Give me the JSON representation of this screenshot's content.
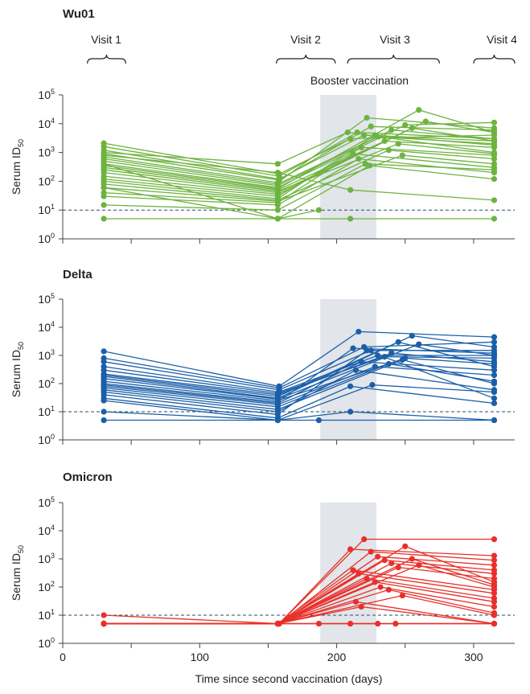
{
  "chart_data": [
    {
      "type": "line",
      "panel": "Wu01",
      "title": "Wu01",
      "color": "#6db33f",
      "ylabel": "Serum ID",
      "ylabel_sub": "50",
      "yscale": "log",
      "ylim": [
        1,
        100000
      ],
      "xlim": [
        0,
        330
      ],
      "limit_of_detection": 10,
      "shaded_region": [
        188,
        229
      ],
      "visits": [
        {
          "label": "Visit 1",
          "range": [
            18,
            46
          ]
        },
        {
          "label": "Visit 2",
          "range": [
            156,
            199
          ]
        },
        {
          "label": "Visit 3",
          "range": [
            208,
            275
          ]
        },
        {
          "label": "Visit 4",
          "range": [
            300,
            330
          ]
        }
      ],
      "booster_label": "Booster vaccination",
      "series": [
        {
          "x": [
            30,
            158,
            210,
            315
          ],
          "y": [
            2100,
            180,
            3000,
            4000
          ]
        },
        {
          "x": [
            30,
            158,
            215,
            315
          ],
          "y": [
            1600,
            150,
            5000,
            3000
          ]
        },
        {
          "x": [
            30,
            158,
            220,
            315
          ],
          "y": [
            1200,
            120,
            4000,
            2500
          ]
        },
        {
          "x": [
            30,
            158,
            225,
            315
          ],
          "y": [
            900,
            110,
            8000,
            6000
          ]
        },
        {
          "x": [
            30,
            157,
            222,
            315
          ],
          "y": [
            700,
            90,
            16000,
            7000
          ]
        },
        {
          "x": [
            30,
            157,
            230,
            315
          ],
          "y": [
            600,
            80,
            3500,
            2000
          ]
        },
        {
          "x": [
            30,
            157,
            240,
            315
          ],
          "y": [
            500,
            70,
            6000,
            3000
          ]
        },
        {
          "x": [
            30,
            157,
            250,
            315
          ],
          "y": [
            400,
            60,
            9000,
            11000
          ]
        },
        {
          "x": [
            30,
            157,
            260,
            315
          ],
          "y": [
            350,
            55,
            30000,
            5000
          ]
        },
        {
          "x": [
            30,
            157,
            235,
            315
          ],
          "y": [
            300,
            50,
            2500,
            1500
          ]
        },
        {
          "x": [
            30,
            157,
            245,
            315
          ],
          "y": [
            250,
            45,
            2000,
            900
          ]
        },
        {
          "x": [
            30,
            157,
            255,
            315
          ],
          "y": [
            200,
            40,
            7000,
            2500
          ]
        },
        {
          "x": [
            30,
            157,
            265,
            315
          ],
          "y": [
            150,
            35,
            12000,
            5000
          ]
        },
        {
          "x": [
            30,
            157,
            218,
            315
          ],
          "y": [
            120,
            30,
            1500,
            800
          ]
        },
        {
          "x": [
            30,
            157,
            228,
            315
          ],
          "y": [
            100,
            25,
            4000,
            1800
          ]
        },
        {
          "x": [
            30,
            157,
            238,
            315
          ],
          "y": [
            80,
            22,
            1200,
            600
          ]
        },
        {
          "x": [
            30,
            157,
            248,
            315
          ],
          "y": [
            60,
            20,
            800,
            400
          ]
        },
        {
          "x": [
            30,
            157,
            212,
            315
          ],
          "y": [
            40,
            18,
            900,
            300
          ]
        },
        {
          "x": [
            30,
            157,
            216,
            315
          ],
          "y": [
            30,
            15,
            600,
            200
          ]
        },
        {
          "x": [
            30,
            157,
            221,
            315
          ],
          "y": [
            15,
            10,
            400,
            250
          ]
        },
        {
          "x": [
            30,
            157,
            208,
            315
          ],
          "y": [
            1000,
            400,
            5000,
            1000
          ]
        },
        {
          "x": [
            30,
            157,
            210,
            315
          ],
          "y": [
            800,
            200,
            50,
            22
          ]
        },
        {
          "x": [
            30,
            157,
            187
          ],
          "y": [
            60,
            5,
            10
          ]
        },
        {
          "x": [
            30,
            157,
            224,
            315
          ],
          "y": [
            400,
            5,
            350,
            120
          ]
        },
        {
          "x": [
            30,
            157,
            210,
            315
          ],
          "y": [
            5,
            5,
            5,
            5
          ]
        }
      ]
    },
    {
      "type": "line",
      "panel": "Delta",
      "title": "Delta",
      "color": "#1a5fa8",
      "ylabel": "Serum ID",
      "ylabel_sub": "50",
      "yscale": "log",
      "ylim": [
        1,
        100000
      ],
      "xlim": [
        0,
        330
      ],
      "limit_of_detection": 10,
      "shaded_region": [
        188,
        229
      ],
      "series": [
        {
          "x": [
            30,
            158,
            216,
            315
          ],
          "y": [
            1400,
            80,
            7000,
            4500
          ]
        },
        {
          "x": [
            30,
            158,
            220,
            315
          ],
          "y": [
            800,
            70,
            2000,
            3000
          ]
        },
        {
          "x": [
            30,
            158,
            225,
            315
          ],
          "y": [
            600,
            60,
            1500,
            1500
          ]
        },
        {
          "x": [
            30,
            158,
            230,
            315
          ],
          "y": [
            400,
            50,
            1000,
            1000
          ]
        },
        {
          "x": [
            30,
            157,
            235,
            315
          ],
          "y": [
            300,
            45,
            900,
            800
          ]
        },
        {
          "x": [
            30,
            157,
            240,
            315
          ],
          "y": [
            220,
            40,
            1200,
            600
          ]
        },
        {
          "x": [
            30,
            157,
            245,
            315
          ],
          "y": [
            200,
            35,
            3000,
            400
          ]
        },
        {
          "x": [
            30,
            157,
            255,
            315
          ],
          "y": [
            180,
            30,
            5000,
            2000
          ]
        },
        {
          "x": [
            30,
            157,
            260,
            315
          ],
          "y": [
            150,
            28,
            2500,
            1000
          ]
        },
        {
          "x": [
            30,
            157,
            250,
            315
          ],
          "y": [
            120,
            25,
            800,
            500
          ]
        },
        {
          "x": [
            30,
            157,
            212,
            315
          ],
          "y": [
            100,
            22,
            1800,
            1200
          ]
        },
        {
          "x": [
            30,
            157,
            218,
            315
          ],
          "y": [
            90,
            20,
            600,
            300
          ]
        },
        {
          "x": [
            30,
            157,
            228,
            315
          ],
          "y": [
            80,
            18,
            400,
            200
          ]
        },
        {
          "x": [
            30,
            157,
            238,
            315
          ],
          "y": [
            70,
            15,
            500,
            120
          ]
        },
        {
          "x": [
            30,
            157,
            248,
            315
          ],
          "y": [
            60,
            12,
            700,
            100
          ]
        },
        {
          "x": [
            30,
            157,
            214,
            315
          ],
          "y": [
            50,
            10,
            300,
            60
          ]
        },
        {
          "x": [
            30,
            157,
            222,
            315
          ],
          "y": [
            40,
            8,
            1500,
            30
          ]
        },
        {
          "x": [
            30,
            157,
            210,
            315
          ],
          "y": [
            30,
            6,
            80,
            20
          ]
        },
        {
          "x": [
            30,
            157,
            226,
            315
          ],
          "y": [
            25,
            5,
            90,
            50
          ]
        },
        {
          "x": [
            30,
            157,
            210,
            315
          ],
          "y": [
            10,
            5,
            10,
            5
          ]
        },
        {
          "x": [
            30,
            157,
            187,
            315
          ],
          "y": [
            5,
            5,
            5,
            5
          ]
        }
      ]
    },
    {
      "type": "line",
      "panel": "Omicron",
      "title": "Omicron",
      "color": "#e8302a",
      "ylabel": "Serum ID",
      "ylabel_sub": "50",
      "yscale": "log",
      "ylim": [
        1,
        100000
      ],
      "xlim": [
        0,
        330
      ],
      "limit_of_detection": 10,
      "shaded_region": [
        188,
        229
      ],
      "xlabel": "Time since second vaccination (days)",
      "xticks": [
        0,
        100,
        200,
        300
      ],
      "series": [
        {
          "x": [
            30,
            158,
            220,
            315
          ],
          "y": [
            10,
            5,
            5000,
            5000
          ]
        },
        {
          "x": [
            30,
            158,
            210,
            315
          ],
          "y": [
            5,
            5,
            2200,
            1300
          ]
        },
        {
          "x": [
            30,
            158,
            225,
            315
          ],
          "y": [
            5,
            5,
            1800,
            900
          ]
        },
        {
          "x": [
            30,
            158,
            230,
            315
          ],
          "y": [
            5,
            5,
            1200,
            600
          ]
        },
        {
          "x": [
            30,
            157,
            235,
            315
          ],
          "y": [
            5,
            5,
            900,
            400
          ]
        },
        {
          "x": [
            30,
            157,
            240,
            315
          ],
          "y": [
            5,
            5,
            700,
            300
          ]
        },
        {
          "x": [
            30,
            157,
            245,
            315
          ],
          "y": [
            5,
            5,
            500,
            200
          ]
        },
        {
          "x": [
            30,
            157,
            250,
            315
          ],
          "y": [
            5,
            5,
            2800,
            150
          ]
        },
        {
          "x": [
            30,
            157,
            255,
            315
          ],
          "y": [
            5,
            5,
            1000,
            120
          ]
        },
        {
          "x": [
            30,
            157,
            260,
            315
          ],
          "y": [
            5,
            5,
            600,
            100
          ]
        },
        {
          "x": [
            30,
            157,
            212,
            315
          ],
          "y": [
            5,
            5,
            400,
            80
          ]
        },
        {
          "x": [
            30,
            157,
            216,
            315
          ],
          "y": [
            5,
            5,
            300,
            60
          ]
        },
        {
          "x": [
            30,
            157,
            222,
            315
          ],
          "y": [
            5,
            5,
            200,
            40
          ]
        },
        {
          "x": [
            30,
            157,
            228,
            315
          ],
          "y": [
            5,
            5,
            150,
            30
          ]
        },
        {
          "x": [
            30,
            157,
            232,
            315
          ],
          "y": [
            5,
            5,
            100,
            20
          ]
        },
        {
          "x": [
            30,
            157,
            238,
            315
          ],
          "y": [
            5,
            5,
            80,
            12
          ]
        },
        {
          "x": [
            30,
            157,
            248,
            315
          ],
          "y": [
            5,
            5,
            50,
            10
          ]
        },
        {
          "x": [
            30,
            157,
            214,
            315
          ],
          "y": [
            5,
            5,
            30,
            5
          ]
        },
        {
          "x": [
            30,
            157,
            218,
            315
          ],
          "y": [
            5,
            5,
            20,
            5
          ]
        },
        {
          "x": [
            30,
            157,
            187,
            315
          ],
          "y": [
            5,
            5,
            5,
            5
          ]
        },
        {
          "x": [
            30,
            157,
            210,
            315
          ],
          "y": [
            5,
            5,
            5,
            5
          ]
        },
        {
          "x": [
            30,
            157,
            230,
            315
          ],
          "y": [
            5,
            5,
            5,
            5
          ]
        },
        {
          "x": [
            30,
            157,
            243,
            315
          ],
          "y": [
            5,
            5,
            5,
            5
          ]
        }
      ]
    }
  ]
}
